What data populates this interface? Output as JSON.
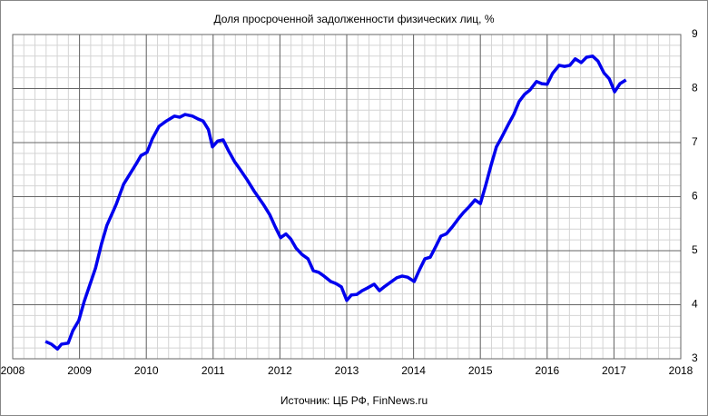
{
  "chart_data": {
    "type": "line",
    "title": "Доля просроченной задолженности физических лиц, %",
    "source": "Источник: ЦБ РФ, FinNews.ru",
    "x": [
      2008.49,
      2008.58,
      2008.67,
      2008.73,
      2008.83,
      2008.9,
      2008.99,
      2009.07,
      2009.24,
      2009.33,
      2009.41,
      2009.55,
      2009.66,
      2009.74,
      2009.85,
      2009.92,
      2010.01,
      2010.09,
      2010.19,
      2010.3,
      2010.42,
      2010.5,
      2010.58,
      2010.69,
      2010.77,
      2010.85,
      2010.93,
      2010.99,
      2011.07,
      2011.15,
      2011.23,
      2011.32,
      2011.4,
      2011.51,
      2011.61,
      2011.75,
      2011.85,
      2011.93,
      2012.01,
      2012.09,
      2012.16,
      2012.24,
      2012.33,
      2012.42,
      2012.5,
      2012.58,
      2012.66,
      2012.76,
      2012.84,
      2012.92,
      2013.0,
      2013.07,
      2013.15,
      2013.23,
      2013.31,
      2013.41,
      2013.49,
      2013.57,
      2013.65,
      2013.75,
      2013.83,
      2013.91,
      2014.01,
      2014.09,
      2014.17,
      2014.25,
      2014.33,
      2014.41,
      2014.49,
      2014.58,
      2014.67,
      2014.75,
      2014.83,
      2014.92,
      2015.0,
      2015.08,
      2015.16,
      2015.24,
      2015.32,
      2015.42,
      2015.5,
      2015.58,
      2015.66,
      2015.74,
      2015.84,
      2015.92,
      2016.0,
      2016.08,
      2016.18,
      2016.26,
      2016.34,
      2016.42,
      2016.51,
      2016.59,
      2016.68,
      2016.76,
      2016.85,
      2016.93,
      2017.01,
      2017.09,
      2017.18
    ],
    "series": [
      {
        "name": "Доля просроченной задолженности",
        "color": "#0000ee",
        "values": [
          3.32,
          3.27,
          3.18,
          3.27,
          3.29,
          3.52,
          3.71,
          4.06,
          4.68,
          5.13,
          5.47,
          5.86,
          6.23,
          6.39,
          6.61,
          6.76,
          6.82,
          7.07,
          7.3,
          7.4,
          7.49,
          7.47,
          7.52,
          7.49,
          7.44,
          7.4,
          7.24,
          6.92,
          7.03,
          7.05,
          6.85,
          6.65,
          6.51,
          6.31,
          6.11,
          5.86,
          5.66,
          5.44,
          5.24,
          5.31,
          5.22,
          5.05,
          4.93,
          4.85,
          4.63,
          4.6,
          4.53,
          4.43,
          4.39,
          4.33,
          4.08,
          4.18,
          4.19,
          4.26,
          4.31,
          4.38,
          4.26,
          4.34,
          4.41,
          4.5,
          4.53,
          4.51,
          4.43,
          4.65,
          4.85,
          4.88,
          5.07,
          5.27,
          5.31,
          5.44,
          5.59,
          5.71,
          5.81,
          5.94,
          5.87,
          6.21,
          6.58,
          6.92,
          7.1,
          7.34,
          7.52,
          7.76,
          7.89,
          7.97,
          8.13,
          8.09,
          8.08,
          8.28,
          8.43,
          8.41,
          8.43,
          8.55,
          8.48,
          8.58,
          8.6,
          8.51,
          8.29,
          8.18,
          7.94,
          8.09,
          8.16
        ]
      }
    ],
    "xlim": [
      2008,
      2018
    ],
    "xticks": [
      2008,
      2009,
      2010,
      2011,
      2012,
      2013,
      2014,
      2015,
      2016,
      2017,
      2018
    ],
    "ylim": [
      3,
      9
    ],
    "yticks": [
      3,
      4,
      5,
      6,
      7,
      8,
      9
    ],
    "y_axis_side": "right",
    "grid": true
  }
}
